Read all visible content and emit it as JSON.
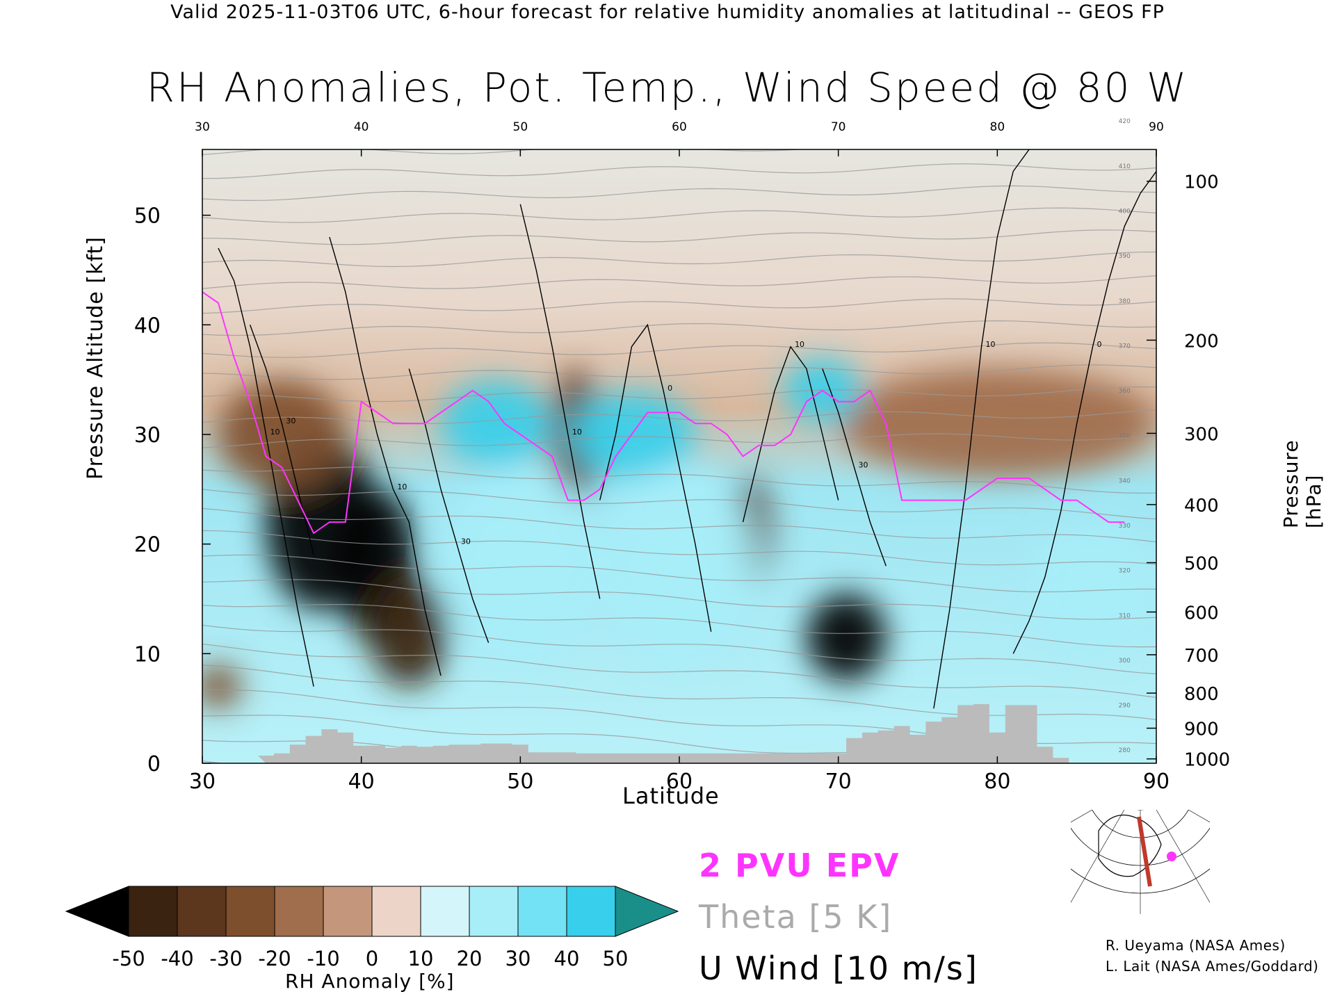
{
  "header": "Valid 2025-11-03T06 UTC, 6-hour forecast for relative humidity anomalies at latitudinal -- GEOS FP",
  "legend": {
    "epv": "2 PVU EPV",
    "theta": "Theta [5 K]",
    "wind": "U Wind [10 m/s]"
  },
  "credits": [
    "R. Ueyama (NASA Ames)",
    "L. Lait (NASA Ames/Goddard)"
  ],
  "colorbar": {
    "label": "RH Anomaly [%]",
    "ticks": [
      "-50",
      "-40",
      "-30",
      "-20",
      "-10",
      "0",
      "10",
      "20",
      "30",
      "40",
      "50"
    ],
    "colors": [
      "#3b2312",
      "#5c371d",
      "#7e4f2d",
      "#a06e4c",
      "#c4977c",
      "#ecd5c8",
      "#d4f6fb",
      "#a7eef8",
      "#72e2f4",
      "#37cfec",
      "#1aa5cc"
    ],
    "under_color": "#000000",
    "over_color": "#1a8f8a"
  },
  "colors": {
    "epv": "#ff33ff",
    "theta": "#999999",
    "wind": "#000000",
    "terrain": "#bbbbbb",
    "map_track": "#c0392b",
    "map_dot": "#ff33ff"
  },
  "chart_data": {
    "type": "heatmap",
    "title": "RH Anomalies, Pot. Temp., Wind Speed @ 80 W",
    "xlabel": "Latitude",
    "ylabel": "Pressure Altitude [kft]",
    "y2label": "Pressure [hPa]",
    "xlim": [
      30,
      90
    ],
    "ylim": [
      0,
      56
    ],
    "x_ticks": [
      30,
      40,
      50,
      60,
      70,
      80,
      90
    ],
    "y_ticks": [
      0,
      10,
      20,
      30,
      40,
      50
    ],
    "pressure_ticks": [
      {
        "hPa": "100",
        "kft": 53.1
      },
      {
        "hPa": "200",
        "kft": 38.6
      },
      {
        "hPa": "300",
        "kft": 30.1
      },
      {
        "hPa": "400",
        "kft": 23.6
      },
      {
        "hPa": "500",
        "kft": 18.3
      },
      {
        "hPa": "600",
        "kft": 13.8
      },
      {
        "hPa": "700",
        "kft": 9.9
      },
      {
        "hPa": "800",
        "kft": 6.4
      },
      {
        "hPa": "900",
        "kft": 3.2
      },
      {
        "hPa": "1000",
        "kft": 0.4
      }
    ],
    "rh_anomaly_regions": [
      {
        "lat": 37.5,
        "kft": 22,
        "rlat": 3.5,
        "rkft": 8,
        "value": -55
      },
      {
        "lat": 41,
        "kft": 18,
        "rlat": 2.5,
        "rkft": 7,
        "value": -55
      },
      {
        "lat": 43,
        "kft": 12,
        "rlat": 2.5,
        "rkft": 5,
        "value": -45
      },
      {
        "lat": 35,
        "kft": 30,
        "rlat": 4,
        "rkft": 5,
        "value": -30
      },
      {
        "lat": 70.5,
        "kft": 11.5,
        "rlat": 2.5,
        "rkft": 4,
        "value": -55
      },
      {
        "lat": 53.5,
        "kft": 30,
        "rlat": 1.5,
        "rkft": 6,
        "value": -35
      },
      {
        "lat": 64.5,
        "kft": 21,
        "rlat": 1.3,
        "rkft": 5,
        "value": -35
      },
      {
        "lat": 80,
        "kft": 31,
        "rlat": 10,
        "rkft": 5,
        "value": -20
      },
      {
        "lat": 31,
        "kft": 7,
        "rlat": 1.5,
        "rkft": 2,
        "value": -30
      },
      {
        "lat": 48.5,
        "kft": 31,
        "rlat": 3.5,
        "rkft": 4,
        "value": 40
      },
      {
        "lat": 57,
        "kft": 30,
        "rlat": 4,
        "rkft": 4,
        "value": 40
      },
      {
        "lat": 69,
        "kft": 34,
        "rlat": 2.5,
        "rkft": 3,
        "value": 45
      },
      {
        "lat": 50,
        "kft": 18,
        "rlat": 5,
        "rkft": 9,
        "value": 25
      },
      {
        "lat": 60,
        "kft": 18,
        "rlat": 5,
        "rkft": 9,
        "value": 20
      },
      {
        "lat": 86,
        "kft": 16,
        "rlat": 4,
        "rkft": 6,
        "value": 25
      }
    ],
    "epv_2pvu": {
      "lat": [
        30,
        31,
        32,
        33,
        34,
        35,
        36,
        37,
        38,
        39,
        40,
        41,
        42,
        43,
        44,
        45,
        46,
        47,
        48,
        49,
        50,
        51,
        52,
        53,
        54,
        55,
        56,
        57,
        58,
        59,
        60,
        61,
        62,
        63,
        64,
        65,
        66,
        67,
        68,
        69,
        70,
        71,
        72,
        73,
        74,
        75,
        76,
        77,
        78,
        79,
        80,
        81,
        82,
        83,
        84,
        85,
        86,
        87,
        88
      ],
      "kft": [
        43,
        42,
        37,
        33,
        28,
        27,
        24,
        21,
        22,
        22,
        33,
        32,
        31,
        31,
        31,
        32,
        33,
        34,
        33,
        31,
        30,
        29,
        28,
        24,
        24,
        25,
        28,
        30,
        32,
        32,
        32,
        31,
        31,
        30,
        28,
        29,
        29,
        30,
        33,
        34,
        33,
        33,
        34,
        31,
        24,
        24,
        24,
        24,
        24,
        25,
        26,
        26,
        26,
        25,
        24,
        24,
        23,
        22,
        22
      ]
    },
    "terrain": {
      "lat": [
        34,
        35,
        36,
        37,
        38,
        39,
        40,
        41,
        42,
        43,
        44,
        45,
        46,
        47,
        48,
        49,
        50,
        51,
        52,
        53,
        54,
        55,
        56,
        57,
        58,
        59,
        60,
        61,
        62,
        63,
        64,
        65,
        66,
        67,
        68,
        69,
        70,
        71,
        72,
        73,
        74,
        75,
        76,
        77,
        78,
        79,
        80,
        81,
        82,
        83,
        84
      ],
      "kft": [
        0.7,
        0.9,
        1.7,
        2.5,
        3.1,
        2.8,
        1.6,
        1.6,
        1.4,
        1.6,
        1.5,
        1.6,
        1.7,
        1.7,
        1.8,
        1.8,
        1.7,
        1.0,
        1.0,
        1.0,
        0.9,
        0.9,
        0.9,
        0.9,
        0.9,
        0.9,
        0.9,
        0.9,
        0.9,
        0.9,
        0.9,
        0.9,
        0.9,
        0.9,
        0.9,
        0.9,
        0.9,
        2.3,
        2.8,
        3.0,
        3.4,
        2.6,
        3.8,
        4.2,
        5.3,
        5.4,
        2.8,
        5.3,
        5.3,
        1.5,
        0.5
      ]
    },
    "theta_levels_K": [
      280,
      285,
      290,
      295,
      300,
      305,
      310,
      315,
      320,
      325,
      330,
      335,
      340,
      345,
      350,
      355,
      360,
      365,
      370,
      375,
      380,
      385,
      390,
      395,
      400,
      405,
      410,
      415,
      420
    ],
    "u_wind_contours": [
      {
        "label": "10",
        "lat": [
          31,
          32,
          33,
          34,
          35,
          36,
          37
        ],
        "kft": [
          47,
          44,
          38,
          30,
          22,
          14,
          7
        ]
      },
      {
        "label": "30",
        "lat": [
          33,
          34,
          35,
          36,
          37
        ],
        "kft": [
          40,
          36,
          31,
          25,
          19
        ]
      },
      {
        "label": "10",
        "lat": [
          38,
          39,
          40,
          41,
          42,
          43,
          44,
          45
        ],
        "kft": [
          48,
          43,
          36,
          30,
          25,
          22,
          14,
          8
        ]
      },
      {
        "label": "30",
        "lat": [
          43,
          44,
          45,
          46,
          47,
          48
        ],
        "kft": [
          36,
          31,
          25,
          20,
          15,
          11
        ]
      },
      {
        "label": "10",
        "lat": [
          50,
          51,
          52,
          53,
          54,
          55
        ],
        "kft": [
          51,
          45,
          38,
          30,
          22,
          15
        ]
      },
      {
        "label": "0",
        "lat": [
          55,
          56,
          57,
          58,
          59,
          60,
          61,
          62
        ],
        "kft": [
          24,
          30,
          38,
          40,
          34,
          27,
          20,
          12
        ]
      },
      {
        "label": "10",
        "lat": [
          64,
          65,
          66,
          67,
          68,
          69,
          70
        ],
        "kft": [
          22,
          28,
          34,
          38,
          36,
          30,
          24
        ]
      },
      {
        "label": "30",
        "lat": [
          69,
          70,
          71,
          72,
          73
        ],
        "kft": [
          36,
          32,
          27,
          22,
          18
        ]
      },
      {
        "label": "10",
        "lat": [
          76,
          77,
          78,
          79,
          80,
          81,
          82
        ],
        "kft": [
          5,
          14,
          25,
          38,
          48,
          54,
          56
        ]
      },
      {
        "label": "0",
        "lat": [
          81,
          82,
          83,
          84,
          85,
          86,
          87,
          88,
          89,
          90
        ],
        "kft": [
          10,
          13,
          17,
          23,
          31,
          38,
          44,
          49,
          52,
          54
        ]
      }
    ]
  }
}
